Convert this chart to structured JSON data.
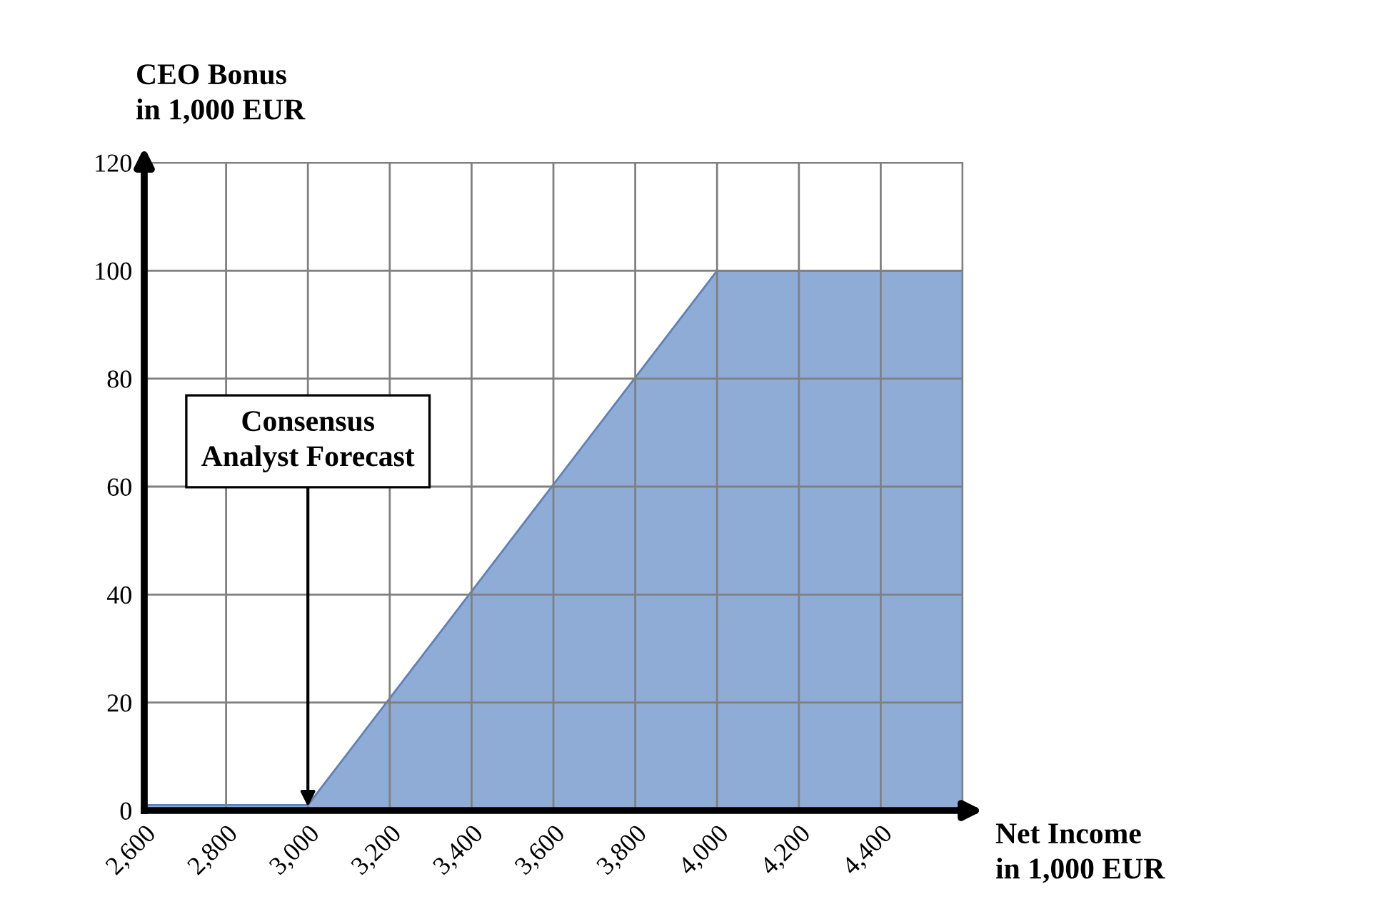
{
  "chart_data": {
    "type": "area",
    "ylabel": "CEO Bonus\nin 1,000 EUR",
    "xlabel": "Net Income\nin 1,000 EUR",
    "x": [
      2600,
      3000,
      4000,
      4600
    ],
    "series": [
      {
        "color": "#8eacd6",
        "values": [
          1,
          1,
          100,
          100
        ]
      }
    ],
    "xlim": [
      2600,
      4600
    ],
    "xticks": [
      {
        "value": 2600,
        "label": "2,600"
      },
      {
        "value": 2800,
        "label": "2,800"
      },
      {
        "value": 3000,
        "label": "3,000"
      },
      {
        "value": 3200,
        "label": "3,200"
      },
      {
        "value": 3400,
        "label": "3,400"
      },
      {
        "value": 3600,
        "label": "3,600"
      },
      {
        "value": 3800,
        "label": "3,800"
      },
      {
        "value": 4000,
        "label": "4,000"
      },
      {
        "value": 4200,
        "label": "4,200"
      },
      {
        "value": 4400,
        "label": "4,400"
      },
      {
        "value": 4600,
        "label": null
      }
    ],
    "ylim": [
      0,
      120
    ],
    "yticks": [
      0,
      20,
      40,
      60,
      80,
      100,
      120
    ],
    "grid": true,
    "annotations": [
      {
        "text": "Consensus\nAnalyst Forecast",
        "x": 3000,
        "y": 0
      }
    ]
  }
}
